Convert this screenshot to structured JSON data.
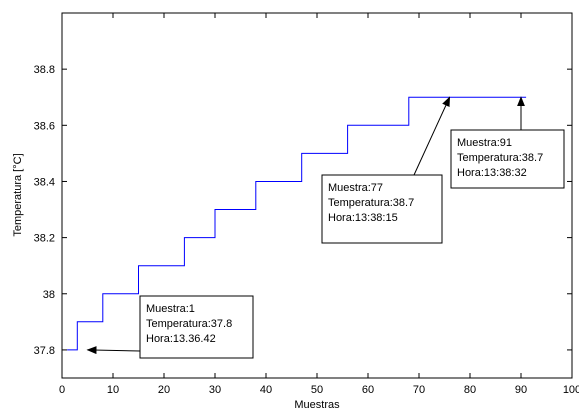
{
  "chart_data": {
    "type": "line",
    "title": "",
    "xlabel": "Muestras",
    "ylabel": "Temperatura [°C]",
    "xlim": [
      0,
      100
    ],
    "ylim": [
      37.7,
      39.0
    ],
    "xticks": [
      0,
      10,
      20,
      30,
      40,
      50,
      60,
      70,
      80,
      90,
      100
    ],
    "yticks": [
      37.8,
      38,
      38.2,
      38.4,
      38.6,
      38.8
    ],
    "ytick_labels": [
      "37.8",
      "38",
      "38.2",
      "38.4",
      "38.6",
      "38.8"
    ],
    "grid": false,
    "line_color": "#0000ff",
    "series": [
      {
        "x": [
          1,
          3,
          3,
          8,
          8,
          15,
          15,
          24,
          24,
          30,
          30,
          38,
          38,
          47,
          47,
          56,
          56,
          68,
          68,
          91
        ],
        "y": [
          37.8,
          37.8,
          37.9,
          37.9,
          38.0,
          38.0,
          38.1,
          38.1,
          38.2,
          38.2,
          38.3,
          38.3,
          38.4,
          38.4,
          38.5,
          38.5,
          38.6,
          38.6,
          38.7,
          38.7
        ]
      }
    ],
    "annotations": [
      {
        "lines": [
          "Muestra:1",
          "Temperatura:37.8",
          "Hora:13.36.42"
        ],
        "target": [
          5,
          37.8
        ]
      },
      {
        "lines": [
          "Muestra:77",
          "Temperatura:38.7",
          "Hora:13:38:15"
        ],
        "target": [
          76,
          38.7
        ]
      },
      {
        "lines": [
          "Muestra:91",
          "Temperatura:38.7",
          "Hora:13:38:32"
        ],
        "target": [
          90,
          38.7
        ]
      }
    ]
  }
}
